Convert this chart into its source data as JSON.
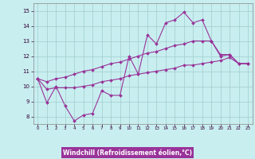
{
  "xlabel": "Windchill (Refroidissement éolien,°C)",
  "bg_color": "#c8eef0",
  "line_color": "#993399",
  "grid_color": "#a0cccc",
  "xlabel_bg": "#993399",
  "xlabel_fg": "#ffffff",
  "xlim": [
    -0.5,
    23.5
  ],
  "ylim": [
    7.5,
    15.5
  ],
  "xticks": [
    0,
    1,
    2,
    3,
    4,
    5,
    6,
    7,
    8,
    9,
    10,
    11,
    12,
    13,
    14,
    15,
    16,
    17,
    18,
    19,
    20,
    21,
    22,
    23
  ],
  "yticks": [
    8,
    9,
    10,
    11,
    12,
    13,
    14,
    15
  ],
  "hours": [
    0,
    1,
    2,
    3,
    4,
    5,
    6,
    7,
    8,
    9,
    10,
    11,
    12,
    13,
    14,
    15,
    16,
    17,
    18,
    19,
    20,
    21,
    22,
    23
  ],
  "line_main": [
    10.5,
    8.9,
    10.0,
    8.7,
    7.7,
    8.1,
    8.2,
    9.7,
    9.4,
    9.4,
    12.0,
    10.8,
    13.4,
    12.8,
    14.2,
    14.4,
    14.9,
    14.2,
    14.4,
    13.0,
    12.0,
    12.1,
    11.5,
    11.5
  ],
  "line_upper": [
    10.5,
    10.3,
    10.5,
    10.6,
    10.8,
    11.0,
    11.1,
    11.3,
    11.5,
    11.6,
    11.8,
    12.0,
    12.2,
    12.3,
    12.5,
    12.7,
    12.8,
    13.0,
    13.0,
    13.0,
    12.1,
    12.1,
    11.5,
    11.5
  ],
  "line_lower": [
    10.5,
    9.8,
    9.9,
    9.9,
    9.9,
    10.0,
    10.1,
    10.3,
    10.4,
    10.5,
    10.7,
    10.8,
    10.9,
    11.0,
    11.1,
    11.2,
    11.4,
    11.4,
    11.5,
    11.6,
    11.7,
    11.9,
    11.5,
    11.5
  ]
}
